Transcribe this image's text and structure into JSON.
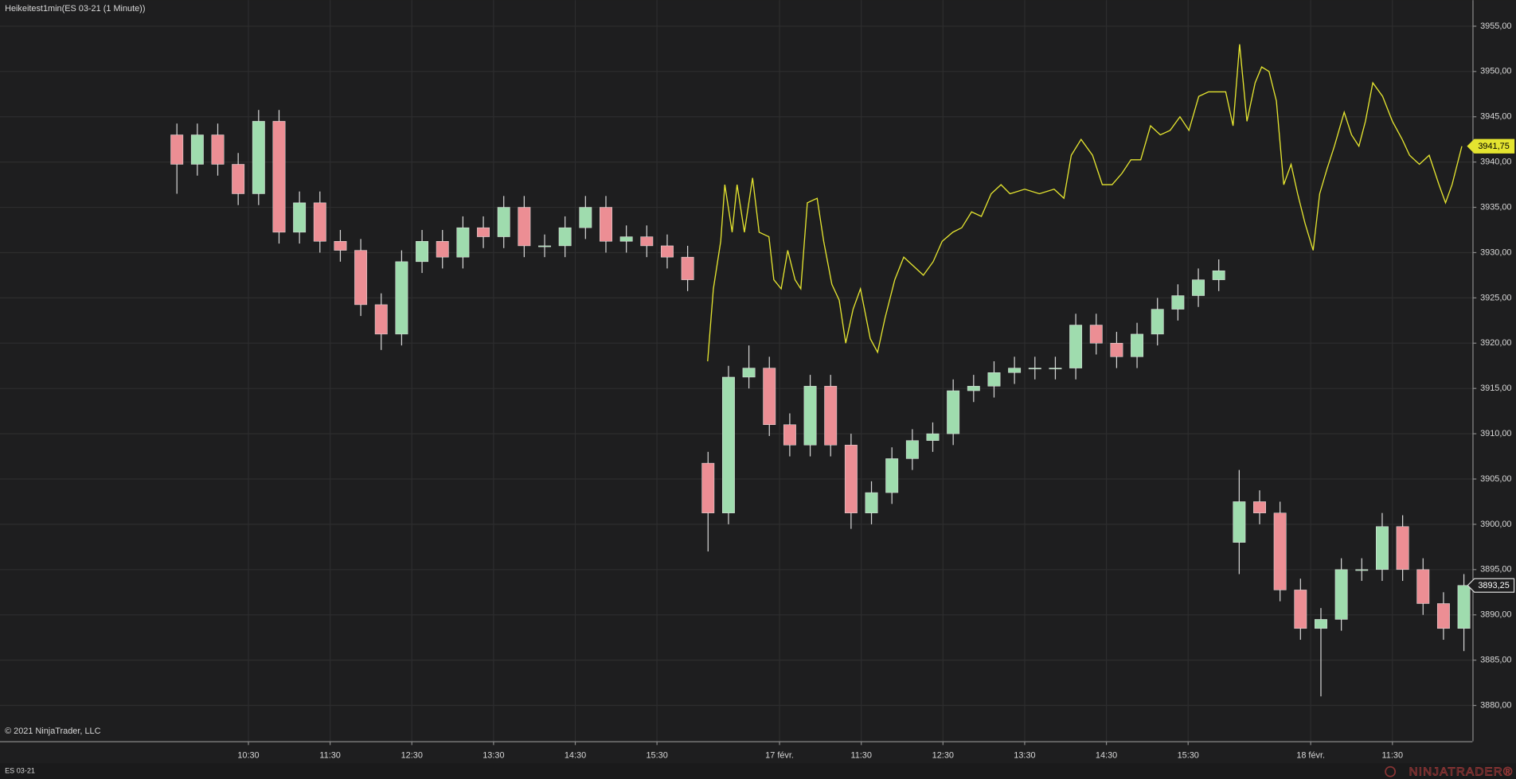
{
  "title": "Heikeitest1min(ES 03-21 (1 Minute))",
  "copyright": "© 2021 NinjaTrader, LLC",
  "tab": "ES 03-21",
  "logo": "NINJATRADER®",
  "chart_data": {
    "type": "candlestick",
    "grid": true,
    "xlim": [
      -2.04,
      15.98
    ],
    "xticks": [
      {
        "value": 1,
        "label": "10:30"
      },
      {
        "value": 2,
        "label": "11:30"
      },
      {
        "value": 3,
        "label": "12:30"
      },
      {
        "value": 4,
        "label": "13:30"
      },
      {
        "value": 5,
        "label": "14:30"
      },
      {
        "value": 6,
        "label": "15:30"
      },
      {
        "value": 7.5,
        "label": "17 févr."
      },
      {
        "value": 8.5,
        "label": "11:30"
      },
      {
        "value": 9.5,
        "label": "12:30"
      },
      {
        "value": 10.5,
        "label": "13:30"
      },
      {
        "value": 11.5,
        "label": "14:30"
      },
      {
        "value": 12.5,
        "label": "15:30"
      },
      {
        "value": 14,
        "label": "18 févr."
      },
      {
        "value": 15,
        "label": "11:30"
      }
    ],
    "ylim": [
      3876.05,
      3957.88
    ],
    "yticks": [
      {
        "value": 3880,
        "label": "3880,00"
      },
      {
        "value": 3885,
        "label": "3885,00"
      },
      {
        "value": 3890,
        "label": "3890,00"
      },
      {
        "value": 3895,
        "label": "3895,00"
      },
      {
        "value": 3900,
        "label": "3900,00"
      },
      {
        "value": 3905,
        "label": "3905,00"
      },
      {
        "value": 3910,
        "label": "3910,00"
      },
      {
        "value": 3915,
        "label": "3915,00"
      },
      {
        "value": 3920,
        "label": "3920,00"
      },
      {
        "value": 3925,
        "label": "3925,00"
      },
      {
        "value": 3930,
        "label": "3930,00"
      },
      {
        "value": 3935,
        "label": "3935,00"
      },
      {
        "value": 3940,
        "label": "3940,00"
      },
      {
        "value": 3945,
        "label": "3945,00"
      },
      {
        "value": 3950,
        "label": "3950,00"
      },
      {
        "value": 3955,
        "label": "3955,00"
      }
    ],
    "series": [
      {
        "type": "candlestick",
        "color_up": "#9fdcae",
        "color_down": "#ec8e94",
        "wick_color": "#d6d6d6",
        "last_value": {
          "value": 3893.25,
          "label": "3893,25"
        },
        "x": [
          0.125,
          0.375,
          0.625,
          0.875,
          1.125,
          1.375,
          1.625,
          1.875,
          2.125,
          2.375,
          2.625,
          2.875,
          3.125,
          3.375,
          3.625,
          3.875,
          4.125,
          4.375,
          4.625,
          4.875,
          5.125,
          5.375,
          5.625,
          5.875,
          6.125,
          6.375,
          6.625,
          6.875,
          7.125,
          7.375,
          7.625,
          7.875,
          8.125,
          8.375,
          8.625,
          8.875,
          9.125,
          9.375,
          9.625,
          9.875,
          10.125,
          10.375,
          10.625,
          10.875,
          11.125,
          11.375,
          11.625,
          11.875,
          12.125,
          12.375,
          12.625,
          12.875,
          13.125,
          13.375,
          13.625,
          13.875,
          14.125,
          14.375,
          14.625,
          14.875,
          15.125,
          15.375,
          15.625,
          15.875
        ],
        "open": [
          3943,
          3939.75,
          3943,
          3939.75,
          3936.5,
          3944.5,
          3932.25,
          3935.5,
          3931.25,
          3930.25,
          3924.25,
          3921,
          3929,
          3931.25,
          3929.5,
          3932.75,
          3931.75,
          3935,
          3930.75,
          3930.75,
          3932.75,
          3935,
          3931.25,
          3931.75,
          3930.75,
          3929.5,
          3906.75,
          3901.25,
          3916.25,
          3917.25,
          3911,
          3908.75,
          3915.25,
          3908.75,
          3901.25,
          3903.5,
          3907.25,
          3909.25,
          3910,
          3914.75,
          3915.25,
          3916.75,
          3917.25,
          3917.25,
          3917.25,
          3922,
          3920,
          3918.5,
          3921,
          3923.75,
          3925.25,
          3927,
          3898,
          3902.5,
          3901.25,
          3892.75,
          3888.5,
          3889.5,
          3895,
          3895,
          3899.75,
          3895,
          3891.25,
          3888.5
        ],
        "high": [
          3944.25,
          3944.25,
          3944.25,
          3941,
          3945.75,
          3945.75,
          3936.75,
          3936.75,
          3932.5,
          3931.5,
          3925.5,
          3930.25,
          3932.5,
          3932.5,
          3934,
          3934,
          3936.25,
          3936.25,
          3932,
          3934,
          3936.25,
          3936.25,
          3933,
          3933,
          3932,
          3930.75,
          3908,
          3917.5,
          3919.75,
          3918.5,
          3912.25,
          3916.5,
          3916.5,
          3910,
          3904.75,
          3908.5,
          3910.5,
          3911.25,
          3916,
          3916.5,
          3918,
          3918.5,
          3918.5,
          3918.5,
          3923.25,
          3923.25,
          3921.25,
          3922.25,
          3925,
          3926.5,
          3928.25,
          3929.25,
          3906,
          3903.75,
          3902.5,
          3894,
          3890.75,
          3896.25,
          3896.25,
          3901.25,
          3901,
          3896.25,
          3892.5,
          3894.5
        ],
        "low": [
          3936.5,
          3938.5,
          3938.5,
          3935.25,
          3935.25,
          3931,
          3931,
          3930,
          3929,
          3923,
          3919.25,
          3919.75,
          3927.75,
          3928.25,
          3928.25,
          3930.5,
          3930.5,
          3929.5,
          3929.5,
          3929.5,
          3931.5,
          3930,
          3930,
          3929.5,
          3928.25,
          3925.75,
          3897,
          3900,
          3915,
          3909.75,
          3907.5,
          3907.5,
          3907.5,
          3899.5,
          3900,
          3902.25,
          3906,
          3908,
          3908.75,
          3913.5,
          3914,
          3915.5,
          3916,
          3916,
          3916,
          3918.75,
          3917.25,
          3917.25,
          3919.75,
          3922.5,
          3924,
          3925.75,
          3894.5,
          3900,
          3891.5,
          3887.25,
          3881,
          3888.25,
          3893.75,
          3893.75,
          3893.75,
          3890,
          3887.25,
          3886
        ],
        "close": [
          3939.75,
          3943,
          3939.75,
          3936.5,
          3944.5,
          3932.25,
          3935.5,
          3931.25,
          3930.25,
          3924.25,
          3921,
          3929,
          3931.25,
          3929.5,
          3932.75,
          3931.75,
          3935,
          3930.75,
          3930.75,
          3932.75,
          3935,
          3931.25,
          3931.75,
          3930.75,
          3929.5,
          3927,
          3901.25,
          3916.25,
          3917.25,
          3911,
          3908.75,
          3915.25,
          3908.75,
          3901.25,
          3903.5,
          3907.25,
          3909.25,
          3910,
          3914.75,
          3915.25,
          3916.75,
          3917.25,
          3917.25,
          3917.25,
          3922,
          3920,
          3918.5,
          3921,
          3923.75,
          3925.25,
          3927,
          3928,
          3902.5,
          3901.25,
          3892.75,
          3888.5,
          3889.5,
          3895,
          3895,
          3899.75,
          3895,
          3891.25,
          3888.5,
          3893.25
        ]
      },
      {
        "type": "line",
        "color": "#e4e430",
        "last_value": {
          "value": 3941.75,
          "label": "3941,75"
        },
        "x": [
          6.62,
          6.69,
          6.78,
          6.83,
          6.92,
          6.98,
          7.07,
          7.17,
          7.25,
          7.37,
          7.43,
          7.52,
          7.6,
          7.69,
          7.76,
          7.84,
          7.96,
          8.04,
          8.14,
          8.23,
          8.31,
          8.4,
          8.49,
          8.61,
          8.7,
          8.79,
          8.91,
          9.02,
          9.14,
          9.26,
          9.38,
          9.49,
          9.62,
          9.73,
          9.85,
          9.97,
          10.09,
          10.21,
          10.32,
          10.5,
          10.68,
          10.86,
          10.98,
          11.07,
          11.19,
          11.33,
          11.45,
          11.57,
          11.69,
          11.8,
          11.92,
          12.04,
          12.16,
          12.28,
          12.4,
          12.51,
          12.63,
          12.75,
          12.87,
          12.96,
          13.05,
          13.13,
          13.22,
          13.32,
          13.4,
          13.49,
          13.58,
          13.67,
          13.76,
          13.84,
          13.93,
          14.03,
          14.11,
          14.2,
          14.29,
          14.41,
          14.5,
          14.59,
          14.67,
          14.76,
          14.88,
          15,
          15.12,
          15.21,
          15.33,
          15.45,
          15.57,
          15.65,
          15.73,
          15.85
        ],
        "values": [
          3918,
          3926,
          3931.25,
          3937.5,
          3932.25,
          3937.5,
          3932.25,
          3938.25,
          3932.25,
          3931.75,
          3927,
          3926,
          3930.25,
          3927,
          3926,
          3935.5,
          3936,
          3931.25,
          3926.5,
          3924.75,
          3920,
          3923.75,
          3926,
          3920.5,
          3919,
          3922.75,
          3927,
          3929.5,
          3928.5,
          3927.5,
          3929,
          3931.25,
          3932.25,
          3932.75,
          3934.5,
          3934,
          3936.5,
          3937.5,
          3936.5,
          3937,
          3936.5,
          3937,
          3936,
          3940.75,
          3942.5,
          3940.75,
          3937.5,
          3937.5,
          3938.75,
          3940.25,
          3940.25,
          3944,
          3943,
          3943.5,
          3945,
          3943.5,
          3947.25,
          3947.75,
          3947.75,
          3947.75,
          3944,
          3953,
          3944.5,
          3948.75,
          3950.5,
          3950,
          3946.75,
          3937.5,
          3939.75,
          3936.5,
          3933.25,
          3930.25,
          3936.5,
          3939.25,
          3941.75,
          3945.5,
          3943,
          3941.75,
          3944.5,
          3948.75,
          3947.25,
          3944.5,
          3942.5,
          3940.75,
          3939.75,
          3940.75,
          3937.5,
          3935.5,
          3937.5,
          3941.75
        ]
      }
    ]
  }
}
